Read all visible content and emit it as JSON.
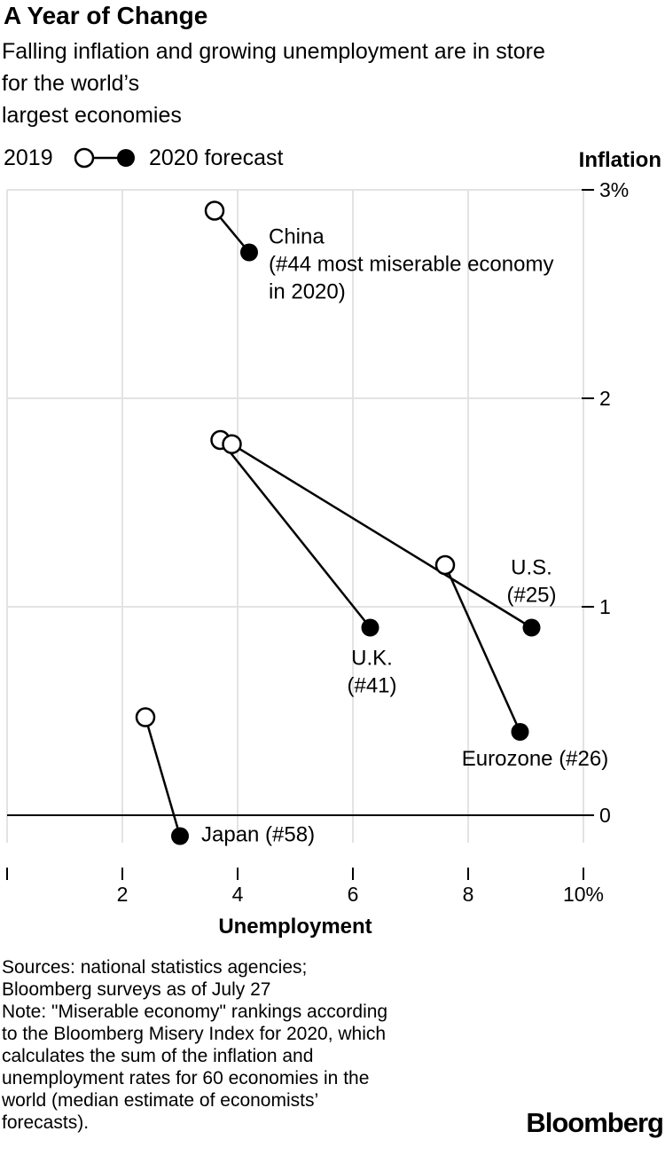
{
  "header": {
    "title": "A Year of Change",
    "subtitle_lines": [
      "Falling inflation and growing unemployment are in store",
      "for the world’s",
      "largest economies"
    ]
  },
  "footer": {
    "notes": [
      "Sources: national statistics agencies;",
      "Bloomberg surveys as of July 27",
      "Note: \"Miserable economy\" rankings according",
      "to the Bloomberg Misery Index for 2020, which",
      "calculates the sum of the inflation and",
      "unemployment rates for 60 economies in the",
      "world (median estimate of economists’",
      "forecasts)."
    ],
    "brand": "Bloomberg"
  },
  "chart_data": {
    "type": "scatter",
    "legend": {
      "from_label": "2019",
      "to_label": "2020 forecast",
      "position": "top-left"
    },
    "xlabel": "Unemployment",
    "ylabel": "Inflation",
    "xlim": [
      0,
      10
    ],
    "ylim": [
      -0.15,
      3
    ],
    "x_ticks": [
      {
        "value": 0,
        "label": ""
      },
      {
        "value": 2,
        "label": "2"
      },
      {
        "value": 4,
        "label": "4"
      },
      {
        "value": 6,
        "label": "6"
      },
      {
        "value": 8,
        "label": "8"
      },
      {
        "value": 10,
        "label": "10%"
      }
    ],
    "y_ticks": [
      {
        "value": 0,
        "label": "0"
      },
      {
        "value": 1,
        "label": "1"
      },
      {
        "value": 2,
        "label": "2"
      },
      {
        "value": 3,
        "label": "3%"
      }
    ],
    "grid": true,
    "series": [
      {
        "name": "China",
        "label_lines": [
          "China",
          "(#44 most miserable economy",
          "in 2020)"
        ],
        "label_anchor": "right-of-2020",
        "x2019": 3.6,
        "y2019": 2.9,
        "x2020": 4.2,
        "y2020": 2.7
      },
      {
        "name": "U.K.",
        "label_lines": [
          "U.K.",
          "(#41)"
        ],
        "label_anchor": "below-2020",
        "x2019": 3.7,
        "y2019": 1.8,
        "x2020": 6.3,
        "y2020": 0.9
      },
      {
        "name": "U.S.",
        "label_lines": [
          "U.S.",
          "(#25)"
        ],
        "label_anchor": "above-2020",
        "x2019": 3.9,
        "y2019": 1.78,
        "x2020": 9.1,
        "y2020": 0.9
      },
      {
        "name": "Eurozone",
        "label_lines": [
          "Eurozone (#26)"
        ],
        "label_anchor": "below-2020",
        "x2019": 7.6,
        "y2019": 1.2,
        "x2020": 8.9,
        "y2020": 0.4
      },
      {
        "name": "Japan",
        "label_lines": [
          "Japan (#58)"
        ],
        "label_anchor": "right-of-2020",
        "x2019": 2.4,
        "y2019": 0.47,
        "x2020": 3.0,
        "y2020": -0.1
      }
    ]
  }
}
